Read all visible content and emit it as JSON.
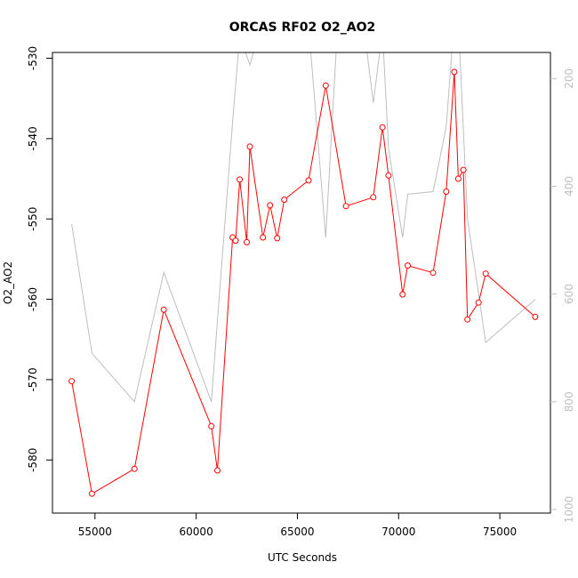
{
  "chart_data": {
    "type": "line",
    "title": "ORCAS RF02 O2_AO2",
    "xlabel": "UTC Seconds",
    "ylabel": "O2_AO2",
    "xlim": [
      52900,
      77500
    ],
    "ylim": [
      -586.5,
      -529.5
    ],
    "y2lim": [
      1005,
      155
    ],
    "x_ticks": [
      55000,
      60000,
      65000,
      70000,
      75000
    ],
    "x_tick_labels": [
      "55000",
      "60000",
      "65000",
      "70000",
      "75000"
    ],
    "y_ticks": [
      -530,
      -540,
      -550,
      -560,
      -570,
      -580
    ],
    "y_tick_labels": [
      "-530",
      "-540",
      "-550",
      "-560",
      "-570",
      "-580"
    ],
    "y2_ticks": [
      200,
      400,
      600,
      800,
      1000
    ],
    "y2_tick_labels": [
      "200",
      "400",
      "600",
      "800",
      "1000"
    ],
    "grid": false,
    "series": [
      {
        "axis": "left",
        "color": "#ff0000",
        "style": "line+open-circles",
        "x": [
          53850,
          54850,
          56950,
          58400,
          60750,
          61050,
          61800,
          61950,
          62150,
          62500,
          62650,
          63300,
          63650,
          64000,
          64350,
          65550,
          66400,
          67400,
          68750,
          69200,
          69500,
          70200,
          70450,
          71700,
          72350,
          72750,
          72950,
          73200,
          73400,
          73950,
          74300,
          76750
        ],
        "y": [
          -570.2,
          -584.2,
          -581.1,
          -561.3,
          -575.8,
          -581.3,
          -552.3,
          -552.7,
          -545.1,
          -552.9,
          -541.0,
          -552.3,
          -548.3,
          -552.4,
          -547.6,
          -545.2,
          -533.4,
          -548.4,
          -547.3,
          -538.6,
          -544.6,
          -559.4,
          -555.8,
          -556.7,
          -546.6,
          -531.7,
          -545.0,
          -543.9,
          -562.5,
          -560.4,
          -556.8,
          -562.2
        ]
      },
      {
        "axis": "right",
        "color": "#bebebe",
        "style": "line",
        "x": [
          53850,
          54850,
          56950,
          58400,
          60750,
          61050,
          61800,
          62150,
          62650,
          63300,
          64000,
          64350,
          65550,
          66400,
          67000,
          68300,
          68750,
          69200,
          69500,
          70200,
          70450,
          71700,
          72350,
          72750,
          72950,
          73400,
          74300,
          76750
        ],
        "y": [
          470,
          710,
          800,
          560,
          800,
          650,
          280,
          120,
          175,
          90,
          110,
          130,
          100,
          495,
          90,
          110,
          245,
          110,
          330,
          495,
          415,
          410,
          290,
          90,
          90,
          460,
          690,
          610
        ]
      }
    ]
  }
}
